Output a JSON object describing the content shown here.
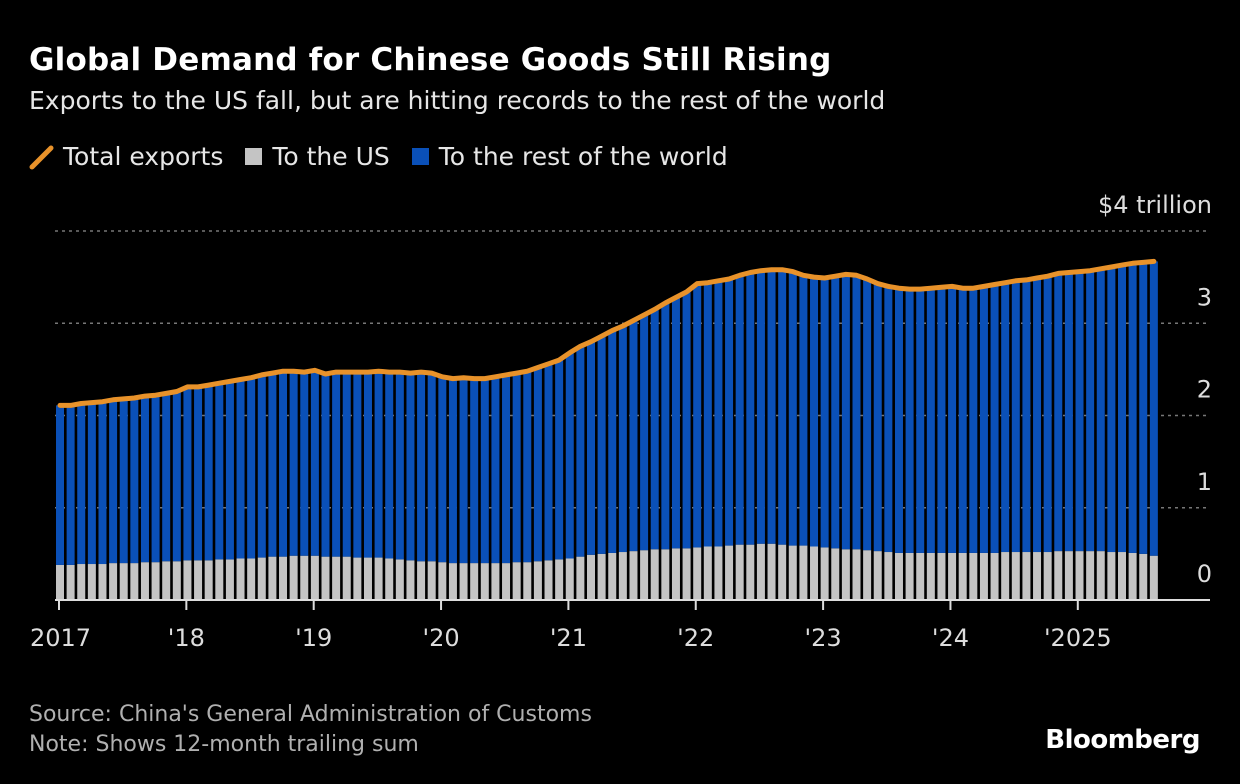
{
  "title": "Global Demand for Chinese Goods Still Rising",
  "subtitle": "Exports to the US fall, but are hitting records to the rest of the world",
  "source": "Source: China's General Administration of Customs",
  "note": "Note: Shows 12-month trailing sum",
  "logo": "Bloomberg",
  "colors": {
    "total": "#e8922a",
    "us": "#c4c4c4",
    "rest": "#0a50b8"
  },
  "chart_data": {
    "type": "bar",
    "stacked": true,
    "legend_position": "top-left",
    "grid": true,
    "ylim": [
      0,
      4
    ],
    "yticks": [
      0,
      1,
      2,
      3,
      4
    ],
    "ytick_labels": [
      "0",
      "1",
      "2",
      "3",
      "$4 trillion"
    ],
    "xtick_labels": [
      "2017",
      "'18",
      "'19",
      "'20",
      "'21",
      "'22",
      "'23",
      "'24",
      "'2025"
    ],
    "x_start": "2017-01",
    "x_end": "2025-08",
    "frequency": "monthly",
    "series": [
      {
        "name": "Total exports",
        "type": "line",
        "values": [
          2.11,
          2.11,
          2.13,
          2.14,
          2.15,
          2.17,
          2.18,
          2.19,
          2.21,
          2.22,
          2.24,
          2.26,
          2.31,
          2.31,
          2.33,
          2.35,
          2.37,
          2.39,
          2.41,
          2.44,
          2.46,
          2.48,
          2.48,
          2.47,
          2.49,
          2.45,
          2.47,
          2.47,
          2.47,
          2.47,
          2.48,
          2.47,
          2.47,
          2.46,
          2.47,
          2.46,
          2.42,
          2.4,
          2.41,
          2.4,
          2.4,
          2.42,
          2.44,
          2.46,
          2.48,
          2.52,
          2.56,
          2.6,
          2.68,
          2.75,
          2.8,
          2.86,
          2.92,
          2.97,
          3.03,
          3.09,
          3.15,
          3.22,
          3.28,
          3.34,
          3.43,
          3.44,
          3.46,
          3.48,
          3.52,
          3.55,
          3.57,
          3.58,
          3.58,
          3.56,
          3.52,
          3.5,
          3.49,
          3.51,
          3.53,
          3.52,
          3.48,
          3.43,
          3.4,
          3.38,
          3.37,
          3.37,
          3.38,
          3.39,
          3.4,
          3.38,
          3.38,
          3.4,
          3.42,
          3.44,
          3.46,
          3.47,
          3.49,
          3.51,
          3.54,
          3.55,
          3.56,
          3.57,
          3.59,
          3.61,
          3.63,
          3.65,
          3.66,
          3.67
        ]
      },
      {
        "name": "To the US",
        "type": "bar",
        "values": [
          0.38,
          0.38,
          0.39,
          0.39,
          0.39,
          0.4,
          0.4,
          0.4,
          0.41,
          0.41,
          0.42,
          0.42,
          0.43,
          0.43,
          0.43,
          0.44,
          0.44,
          0.45,
          0.45,
          0.46,
          0.47,
          0.47,
          0.48,
          0.48,
          0.48,
          0.47,
          0.47,
          0.47,
          0.46,
          0.46,
          0.46,
          0.45,
          0.44,
          0.43,
          0.42,
          0.42,
          0.41,
          0.4,
          0.4,
          0.4,
          0.4,
          0.4,
          0.4,
          0.41,
          0.41,
          0.42,
          0.43,
          0.44,
          0.45,
          0.47,
          0.49,
          0.5,
          0.51,
          0.52,
          0.53,
          0.54,
          0.55,
          0.55,
          0.56,
          0.56,
          0.57,
          0.58,
          0.58,
          0.59,
          0.6,
          0.6,
          0.61,
          0.61,
          0.6,
          0.59,
          0.59,
          0.58,
          0.57,
          0.56,
          0.55,
          0.55,
          0.54,
          0.53,
          0.52,
          0.51,
          0.51,
          0.51,
          0.51,
          0.51,
          0.51,
          0.51,
          0.51,
          0.51,
          0.51,
          0.52,
          0.52,
          0.52,
          0.52,
          0.52,
          0.53,
          0.53,
          0.53,
          0.53,
          0.53,
          0.52,
          0.52,
          0.51,
          0.5,
          0.48
        ]
      },
      {
        "name": "To the rest of the world",
        "type": "bar",
        "derived": "Total exports minus To the US"
      }
    ]
  }
}
